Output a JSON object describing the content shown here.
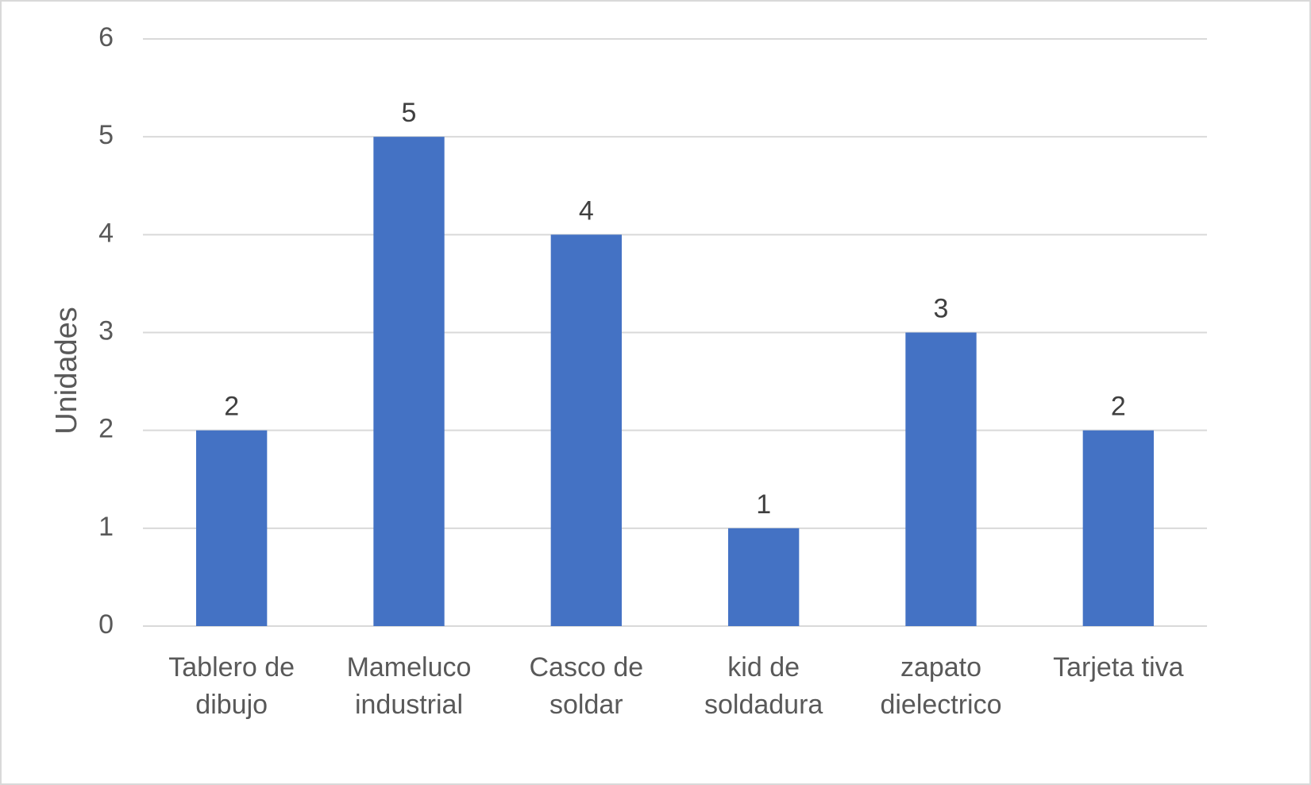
{
  "chart_data": {
    "type": "bar",
    "title": "",
    "xlabel": "",
    "ylabel": "Unidades",
    "ylim": [
      0,
      6
    ],
    "yticks": [
      0,
      1,
      2,
      3,
      4,
      5,
      6
    ],
    "grid": true,
    "legend": "none",
    "categories": [
      [
        "Tablero de",
        "dibujo"
      ],
      [
        "Mameluco",
        "industrial"
      ],
      [
        "Casco de",
        "soldar"
      ],
      [
        "kid de",
        "soldadura"
      ],
      [
        "zapato",
        "dielectrico"
      ],
      [
        "Tarjeta tiva"
      ]
    ],
    "values": [
      2,
      5,
      4,
      1,
      3,
      2
    ],
    "data_labels": true,
    "colors": {
      "bar": "#4472c4",
      "grid": "#d9d9d9"
    }
  }
}
